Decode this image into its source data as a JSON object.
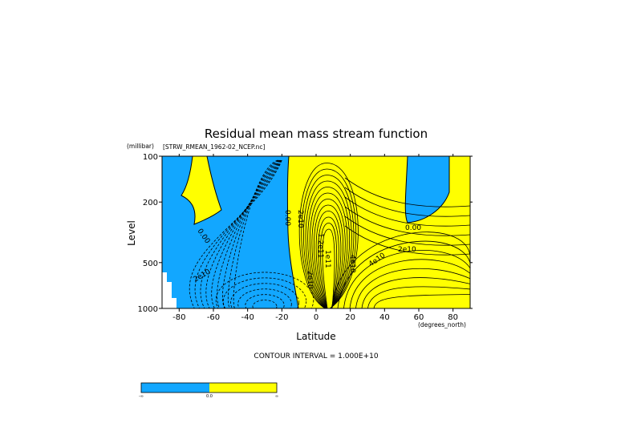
{
  "chart_data": {
    "type": "contour",
    "title": "Residual mean mass stream function",
    "subtitle": "[STRW_RMEAN_1962-02_NCEP.nc]",
    "ylabel": "Level",
    "yunit": "(millibar)",
    "xlabel": "Latitude",
    "xunit": "(degrees_north)",
    "xlim": [
      -90,
      90
    ],
    "ylim": [
      1000,
      100
    ],
    "yscale": "log",
    "x_ticks": [
      "-80",
      "-60",
      "-40",
      "-20",
      "0",
      "20",
      "40",
      "60",
      "80"
    ],
    "x_tick_values": [
      -80,
      -60,
      -40,
      -20,
      0,
      20,
      40,
      60,
      80
    ],
    "y_ticks": [
      "100",
      "200",
      "500",
      "1000"
    ],
    "y_tick_values": [
      100,
      200,
      500,
      1000
    ],
    "contour_interval": "CONTOUR INTERVAL = 1.000E+10",
    "contour_labels": [
      "0.00",
      "2e10",
      "0.00",
      "2e10",
      "4e10",
      "2e10",
      "0.00",
      "1.2e11",
      "1e11",
      "2e10",
      "4e10"
    ],
    "fill_colors": {
      "negative": "#12a7ff",
      "positive": "#ffff00",
      "missing": "#ffffff"
    },
    "fill_threshold": 0,
    "colorbar": {
      "colors": [
        "#12a7ff",
        "#ffff00"
      ],
      "labels": [
        "-∞",
        "0.0",
        "∞"
      ]
    }
  }
}
